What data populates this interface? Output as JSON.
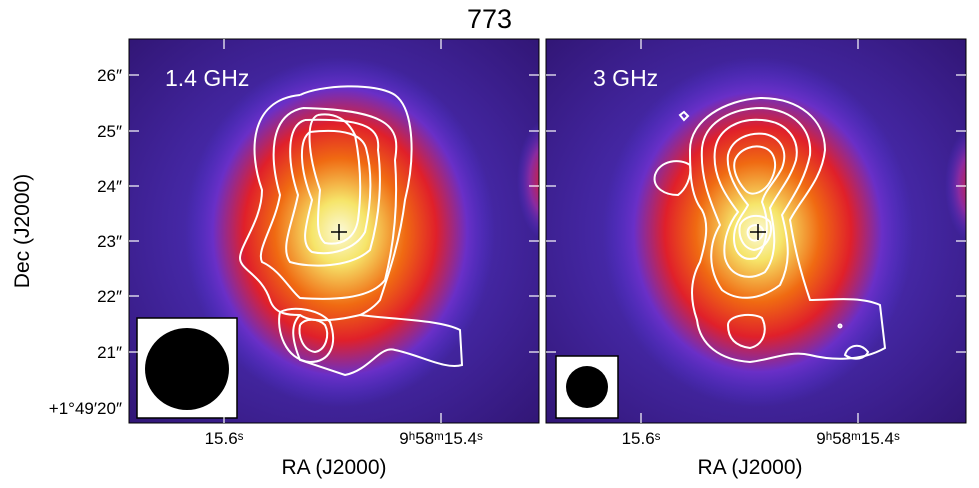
{
  "title": "773",
  "colors": {
    "background_outer": "#2f1470",
    "background_inner": "#4a2ec8",
    "ring_red": "#e0202a",
    "ring_orange": "#f06a12",
    "core_yellow": "#f6e56a",
    "core_white": "#fbf9d8",
    "contour": "#ffffff",
    "marker": "#000000"
  },
  "chart_data": [
    {
      "type": "heatmap",
      "panel_label": "1.4 GHz",
      "xlabel": "RA (J2000)",
      "ylabel": "Dec (J2000)",
      "x_tick_labels": [
        "15.6",
        "9h58m15.4"
      ],
      "x_tick_labels_display": [
        "15.6ˢ",
        "9ʰ58ᵐ15.4ˢ"
      ],
      "y_tick_labels": [
        "26″",
        "25″",
        "24″",
        "23″",
        "22″",
        "21″",
        "+1°49′20″"
      ],
      "source_marker": "cross",
      "contours": "white radio contours",
      "beam": "filled black ellipse (large)"
    },
    {
      "type": "heatmap",
      "panel_label": "3 GHz",
      "xlabel": "RA (J2000)",
      "ylabel": "",
      "x_tick_labels": [
        "15.6",
        "9h58m15.4"
      ],
      "x_tick_labels_display": [
        "15.6ˢ",
        "9ʰ58ᵐ15.4ˢ"
      ],
      "y_tick_labels": [],
      "source_marker": "cross",
      "contours": "white radio contours",
      "beam": "filled black ellipse (small)"
    }
  ]
}
